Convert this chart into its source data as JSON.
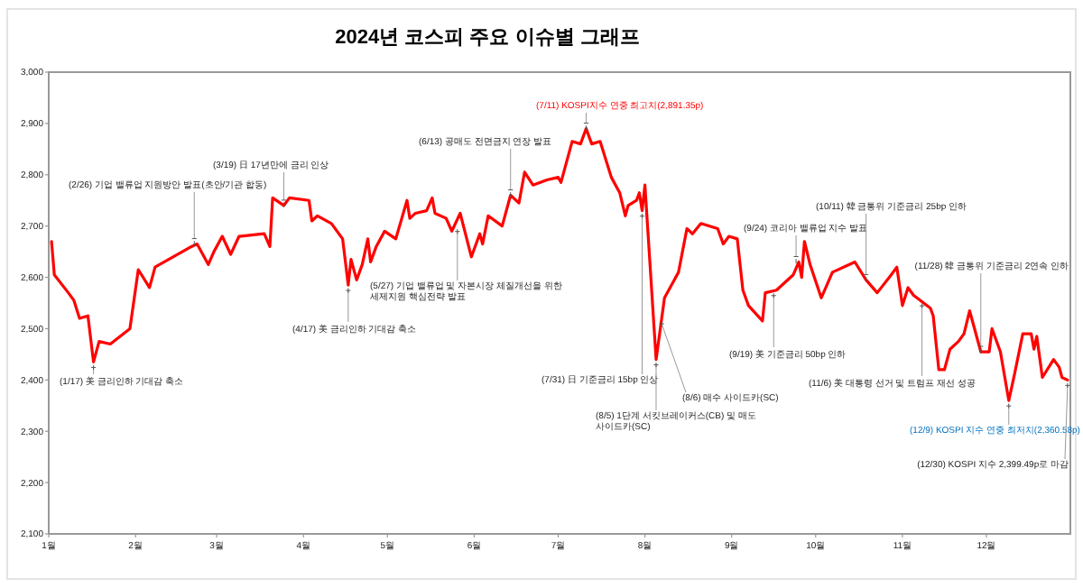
{
  "chart_data": {
    "type": "line",
    "title": "2024년 코스피 주요 이슈별 그래프",
    "x": [
      "2024-01-02",
      "2024-01-03",
      "2024-01-08",
      "2024-01-10",
      "2024-01-12",
      "2024-01-15",
      "2024-01-17",
      "2024-01-19",
      "2024-01-23",
      "2024-01-30",
      "2024-02-02",
      "2024-02-06",
      "2024-02-08",
      "2024-02-21",
      "2024-02-23",
      "2024-02-27",
      "2024-02-29",
      "2024-03-03",
      "2024-03-06",
      "2024-03-09",
      "2024-03-18",
      "2024-03-20",
      "2024-03-21",
      "2024-03-25",
      "2024-03-27",
      "2024-04-03",
      "2024-04-04",
      "2024-04-06",
      "2024-04-11",
      "2024-04-15",
      "2024-04-17",
      "2024-04-18",
      "2024-04-20",
      "2024-04-22",
      "2024-04-24",
      "2024-04-25",
      "2024-04-27",
      "2024-04-30",
      "2024-05-04",
      "2024-05-08",
      "2024-05-09",
      "2024-05-11",
      "2024-05-15",
      "2024-05-17",
      "2024-05-18",
      "2024-05-22",
      "2024-05-24",
      "2024-05-27",
      "2024-05-31",
      "2024-06-03",
      "2024-06-04",
      "2024-06-06",
      "2024-06-11",
      "2024-06-14",
      "2024-06-17",
      "2024-06-19",
      "2024-06-22",
      "2024-06-27",
      "2024-07-01",
      "2024-07-02",
      "2024-07-06",
      "2024-07-09",
      "2024-07-11",
      "2024-07-13",
      "2024-07-16",
      "2024-07-20",
      "2024-07-23",
      "2024-07-25",
      "2024-07-26",
      "2024-07-29",
      "2024-07-30",
      "2024-07-31",
      "2024-08-01",
      "2024-08-05",
      "2024-08-07",
      "2024-08-08",
      "2024-08-11",
      "2024-08-13",
      "2024-08-16",
      "2024-08-18",
      "2024-08-21",
      "2024-08-27",
      "2024-08-29",
      "2024-08-31",
      "2024-09-03",
      "2024-09-05",
      "2024-09-07",
      "2024-09-12",
      "2024-09-13",
      "2024-09-17",
      "2024-09-20",
      "2024-09-23",
      "2024-09-25",
      "2024-09-26",
      "2024-09-27",
      "2024-09-29",
      "2024-10-03",
      "2024-10-07",
      "2024-10-15",
      "2024-10-19",
      "2024-10-23",
      "2024-10-28",
      "2024-10-30",
      "2024-11-01",
      "2024-11-03",
      "2024-11-05",
      "2024-11-11",
      "2024-11-12",
      "2024-11-14",
      "2024-11-16",
      "2024-11-18",
      "2024-11-21",
      "2024-11-23",
      "2024-11-25",
      "2024-11-29",
      "2024-12-02",
      "2024-12-03",
      "2024-12-06",
      "2024-12-09",
      "2024-12-11",
      "2024-12-14",
      "2024-12-17",
      "2024-12-18",
      "2024-12-19",
      "2024-12-21",
      "2024-12-25",
      "2024-12-27",
      "2024-12-28",
      "2024-12-30"
    ],
    "series": [
      {
        "color": "#ff0000",
        "values": [
          2670,
          2605,
          2570,
          2555,
          2520,
          2525,
          2435,
          2475,
          2470,
          2500,
          2615,
          2580,
          2620,
          2660,
          2665,
          2625,
          2650,
          2680,
          2645,
          2680,
          2685,
          2660,
          2755,
          2740,
          2755,
          2750,
          2710,
          2720,
          2705,
          2675,
          2585,
          2635,
          2595,
          2625,
          2675,
          2630,
          2660,
          2690,
          2675,
          2750,
          2715,
          2725,
          2730,
          2755,
          2725,
          2715,
          2690,
          2725,
          2640,
          2685,
          2665,
          2720,
          2700,
          2760,
          2745,
          2805,
          2780,
          2790,
          2795,
          2785,
          2865,
          2860,
          2890,
          2860,
          2865,
          2795,
          2765,
          2720,
          2740,
          2750,
          2765,
          2730,
          2780,
          2440,
          2520,
          2560,
          2590,
          2610,
          2695,
          2685,
          2705,
          2695,
          2665,
          2680,
          2675,
          2575,
          2545,
          2515,
          2570,
          2575,
          2590,
          2605,
          2630,
          2600,
          2670,
          2625,
          2560,
          2610,
          2630,
          2595,
          2570,
          2605,
          2620,
          2545,
          2580,
          2565,
          2540,
          2525,
          2420,
          2420,
          2460,
          2475,
          2490,
          2535,
          2455,
          2455,
          2500,
          2455,
          2360,
          2410,
          2490,
          2490,
          2460,
          2485,
          2405,
          2440,
          2425,
          2405,
          2400
        ]
      }
    ],
    "xlim": [
      "2024-01-01",
      "2024-12-31"
    ],
    "xticks": [
      {
        "value": "2024-01-01",
        "label": "1월"
      },
      {
        "value": "2024-02-01",
        "label": "2월"
      },
      {
        "value": "2024-03-01",
        "label": "3월"
      },
      {
        "value": "2024-04-01",
        "label": "4월"
      },
      {
        "value": "2024-05-01",
        "label": "5월"
      },
      {
        "value": "2024-06-01",
        "label": "6월"
      },
      {
        "value": "2024-07-01",
        "label": "7월"
      },
      {
        "value": "2024-08-01",
        "label": "8월"
      },
      {
        "value": "2024-09-01",
        "label": "9월"
      },
      {
        "value": "2024-10-01",
        "label": "10월"
      },
      {
        "value": "2024-11-01",
        "label": "11월"
      },
      {
        "value": "2024-12-01",
        "label": "12월"
      }
    ],
    "ylim": [
      2100,
      3000
    ],
    "yticks": [
      {
        "value": 2100,
        "label": "2,100"
      },
      {
        "value": 2200,
        "label": "2,200"
      },
      {
        "value": 2300,
        "label": "2,300"
      },
      {
        "value": 2400,
        "label": "2,400"
      },
      {
        "value": 2500,
        "label": "2,500"
      },
      {
        "value": 2600,
        "label": "2,600"
      },
      {
        "value": 2700,
        "label": "2,700"
      },
      {
        "value": 2800,
        "label": "2,800"
      },
      {
        "value": 2900,
        "label": "2,900"
      },
      {
        "value": 3000,
        "label": "3,000"
      }
    ],
    "grid": false,
    "marker": "none",
    "line_style": "solid",
    "annotations": [
      {
        "text": "(1/17) 美 금리인하 기대감 축소",
        "x": "2024-01-17",
        "y": 2435
      },
      {
        "text": "(2/26) 기업 밸류업 지원방안 발표(초안/기관 합동)",
        "x": "2024-02-22",
        "y": 2665
      },
      {
        "text": "(3/19) 日 17년만에 금리 인상",
        "x": "2024-03-25",
        "y": 2740
      },
      {
        "text": "(4/17) 美 금리인하 기대감 축소",
        "x": "2024-04-17",
        "y": 2585
      },
      {
        "text": "(5/27) 기업 밸류업 및 자본시장 체질개선을 위한 세제지원 핵심전략 발표",
        "x": "2024-05-26",
        "y": 2700
      },
      {
        "text": "(6/13) 공매도 전면금지 연장 발표",
        "x": "2024-06-14",
        "y": 2760
      },
      {
        "text": "(7/11) KOSPI지수 연중 최고치(2,891.35p)",
        "x": "2024-07-11",
        "y": 2890
      },
      {
        "text": "(7/31) 日 기준금리 15bp 인상",
        "x": "2024-07-31",
        "y": 2730
      },
      {
        "text": "(8/5) 1단계 서킷브레이커스(CB) 및 매도 사이드카(SC)",
        "x": "2024-08-05",
        "y": 2440
      },
      {
        "text": "(8/6) 매수 사이드카(SC)",
        "x": "2024-08-07",
        "y": 2520
      },
      {
        "text": "(9/19) 美 기준금리 50bp 인하",
        "x": "2024-09-16",
        "y": 2575
      },
      {
        "text": "(9/24) 코리아 밸류업 지수 발표",
        "x": "2024-09-24",
        "y": 2630
      },
      {
        "text": "(10/11) 韓 금통위 기준금리 25bp 인하",
        "x": "2024-10-19",
        "y": 2595
      },
      {
        "text": "(11/28) 韓 금통위 기준금리 2연속 인하",
        "x": "2024-11-29",
        "y": 2455
      },
      {
        "text": "(11/6) 美 대통령 선거 및 트럼프 재선 성공",
        "x": "2024-11-08",
        "y": 2555
      },
      {
        "text": "(12/9) KOSPI 지수 연중 최저치(2,360.58p)",
        "x": "2024-12-09",
        "y": 2360
      },
      {
        "text": "(12/30) KOSPI 지수 2,399.49p로 마감",
        "x": "2024-12-30",
        "y": 2400
      }
    ]
  }
}
